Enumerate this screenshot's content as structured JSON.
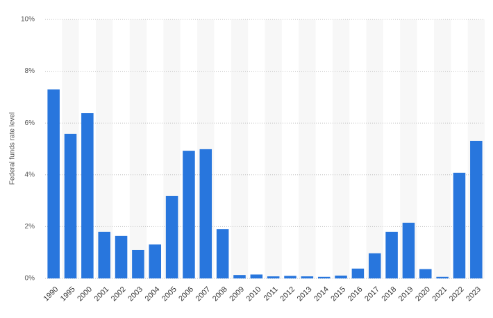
{
  "chart_data": {
    "type": "bar",
    "y_axis_label": "Federal funds rate level",
    "categories": [
      "1990",
      "1995",
      "2000",
      "2001",
      "2002",
      "2003",
      "2004",
      "2005",
      "2006",
      "2007",
      "2008",
      "2009",
      "2010",
      "2011",
      "2012",
      "2013",
      "2014",
      "2015",
      "2016",
      "2017",
      "2018",
      "2019",
      "2020",
      "2021",
      "2022",
      "2023"
    ],
    "values": [
      7.3,
      5.58,
      6.38,
      1.8,
      1.64,
      1.1,
      1.31,
      3.19,
      4.93,
      4.99,
      1.9,
      0.13,
      0.15,
      0.08,
      0.1,
      0.08,
      0.06,
      0.11,
      0.38,
      0.97,
      1.8,
      2.15,
      0.36,
      0.06,
      4.08,
      5.31
    ],
    "color": "#2876dd",
    "ylim": [
      0,
      10
    ],
    "yticks": [
      {
        "value": 0,
        "label": "0%"
      },
      {
        "value": 2,
        "label": "2%"
      },
      {
        "value": 4,
        "label": "4%"
      },
      {
        "value": 6,
        "label": "6%"
      },
      {
        "value": 8,
        "label": "8%"
      },
      {
        "value": 10,
        "label": "10%"
      }
    ],
    "grid": true
  }
}
